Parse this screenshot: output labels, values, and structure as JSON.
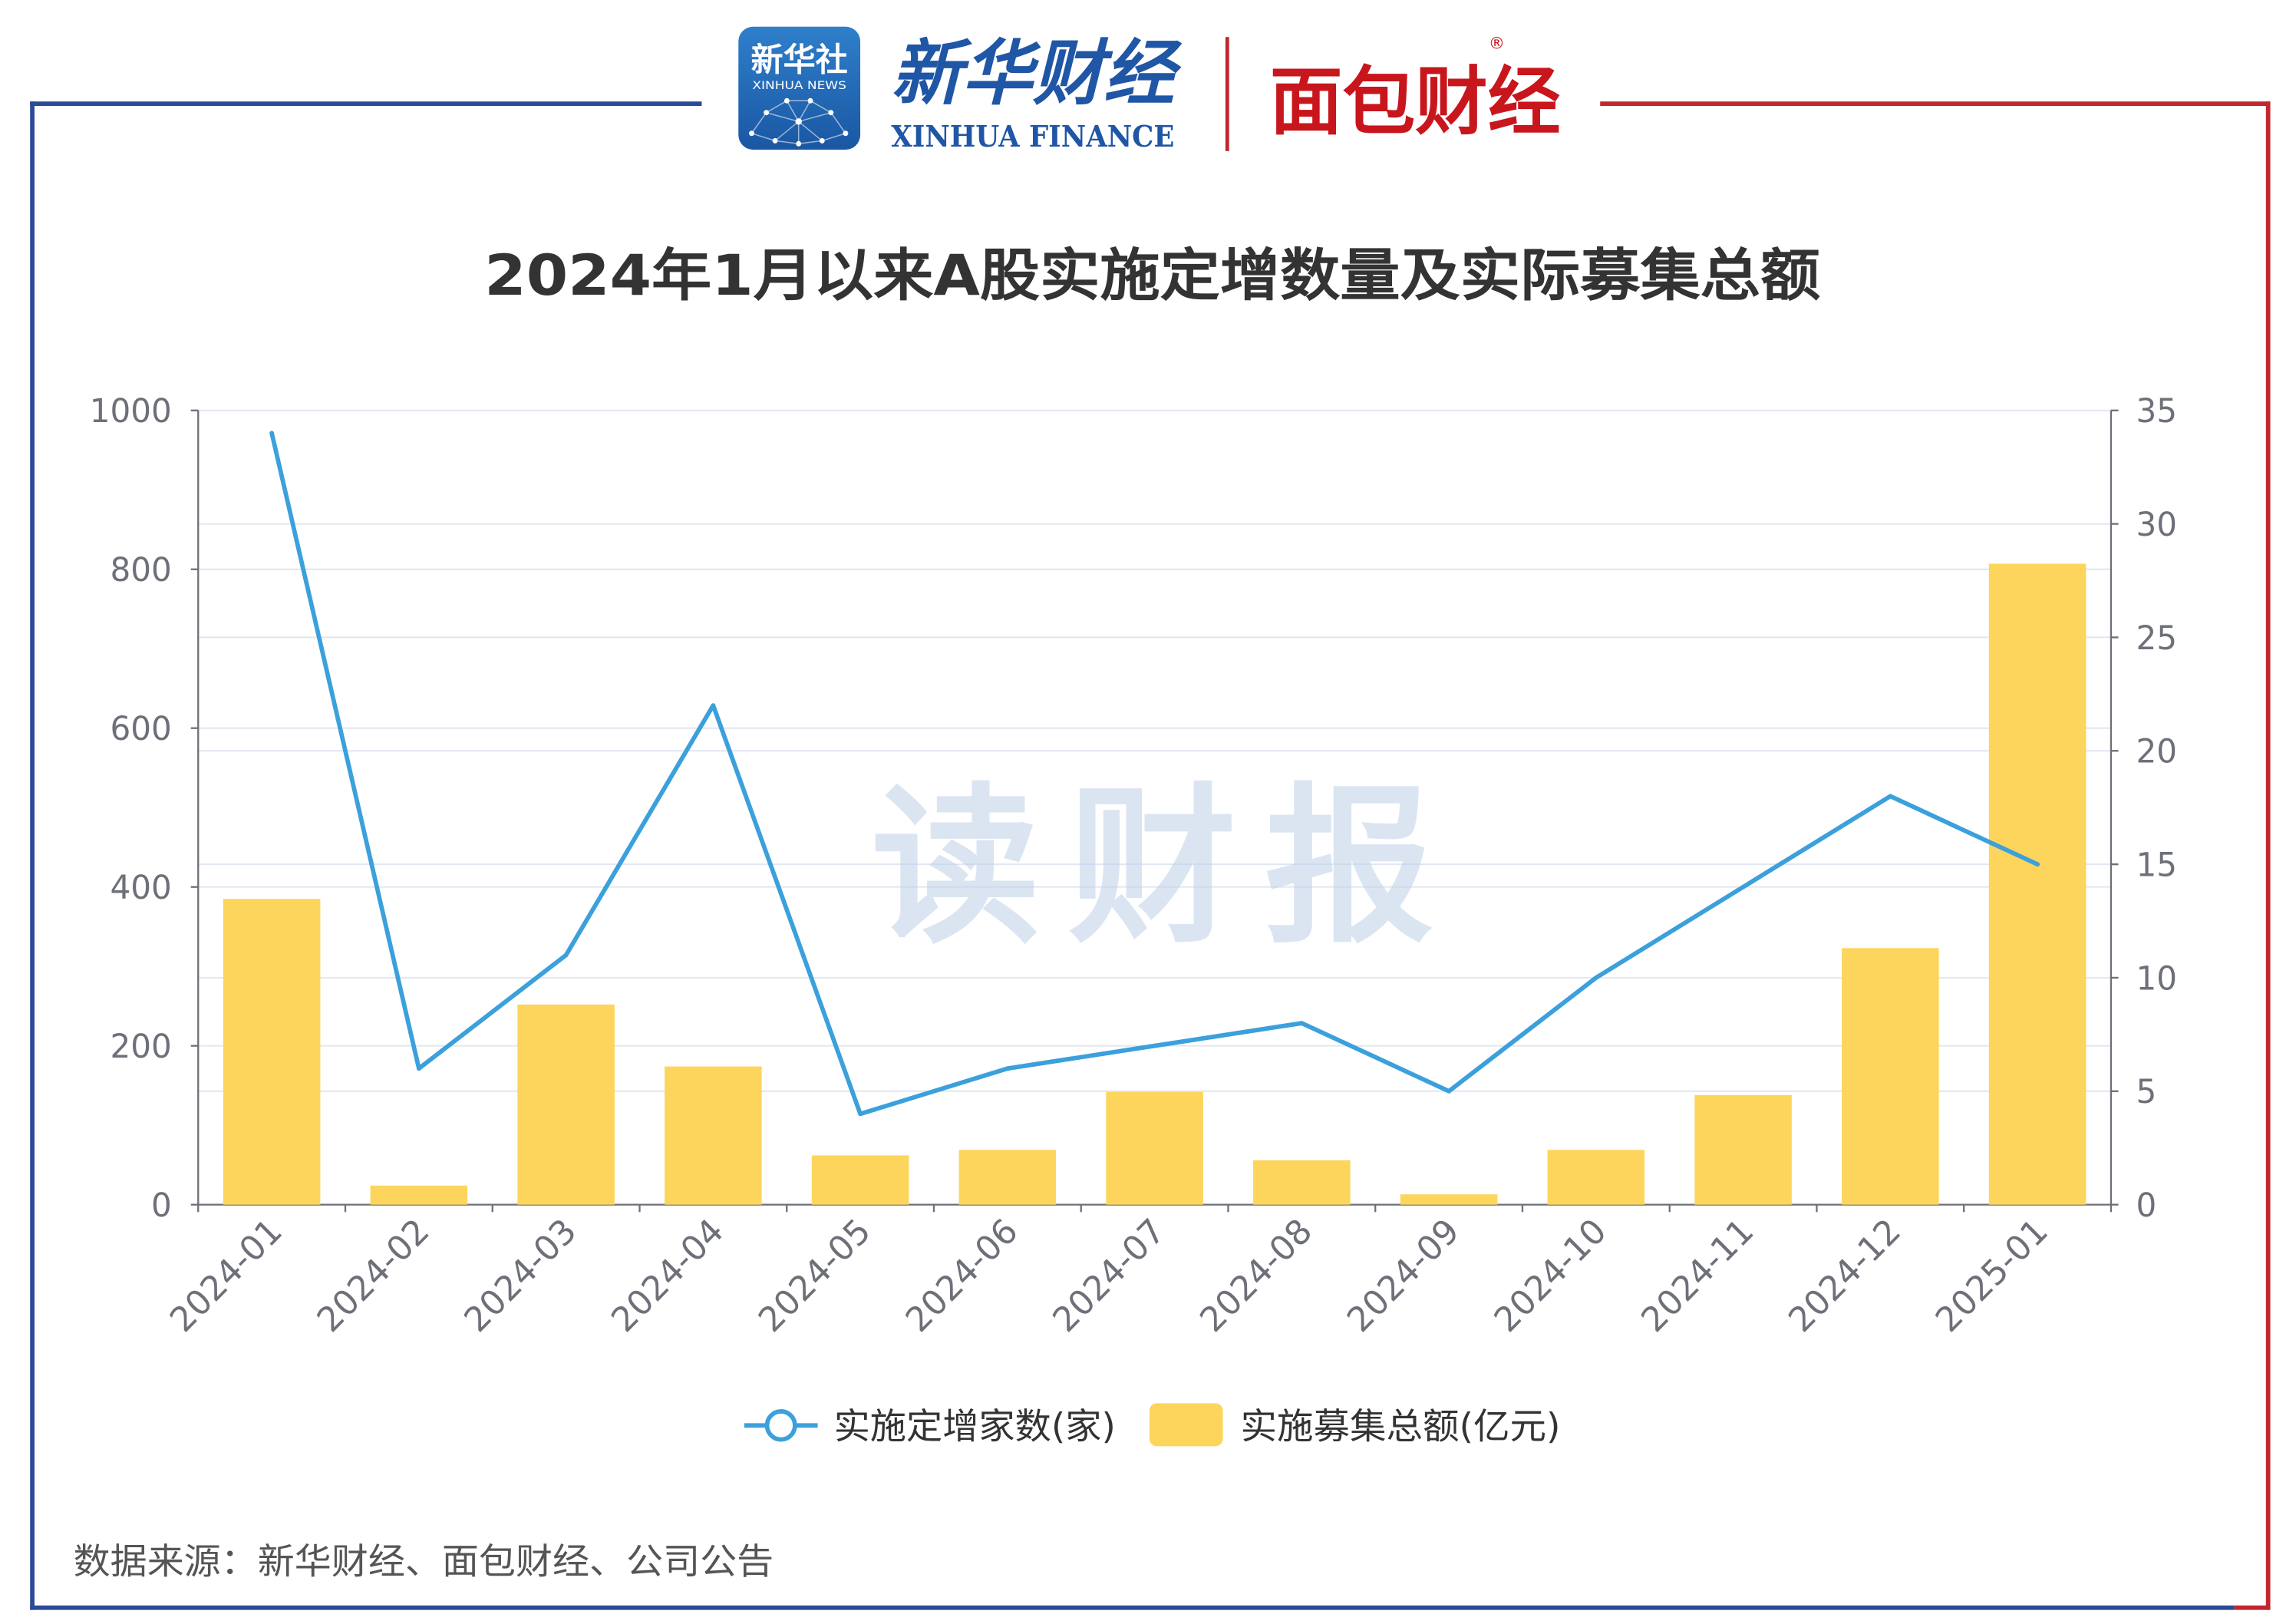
{
  "header": {
    "xinhua_news": {
      "cn": "新华社",
      "en": "XINHUA NEWS"
    },
    "xinhua_finance": {
      "cn": "新华财经",
      "en": "XINHUA FINANCE"
    },
    "mianbao_finance": {
      "cn": "面包财经",
      "mark": "®"
    }
  },
  "watermark": "读财报",
  "footer": {
    "source": "数据来源：新华财经、面包财经、公司公告"
  },
  "colors": {
    "frame_blue": "#2B4A97",
    "frame_red": "#C1272D",
    "xinhua_blue": "#1F56A5",
    "mianbao_red": "#C8161D",
    "watermark": "#BFD0E9",
    "grid": "#E0E6F1",
    "axis": "#6E7079"
  },
  "chart_data": {
    "type": "bar",
    "title": "2024年1月以来A股实施定增数量及实际募集总额",
    "categories": [
      "2024-01",
      "2024-02",
      "2024-03",
      "2024-04",
      "2024-05",
      "2024-06",
      "2024-07",
      "2024-08",
      "2024-09",
      "2024-10",
      "2024-11",
      "2024-12",
      "2025-01"
    ],
    "series": [
      {
        "name": "实施定增家数(家)",
        "type": "line",
        "y_axis": "right",
        "color": "#3BA0DB",
        "values": [
          34,
          6,
          11,
          22,
          4,
          6,
          7,
          8,
          5,
          10,
          14,
          18,
          15
        ]
      },
      {
        "name": "实施募集总额(亿元)",
        "type": "bar",
        "y_axis": "left",
        "color": "#FDD55C",
        "values": [
          385,
          24,
          252,
          174,
          62,
          69,
          142,
          56,
          13,
          69,
          138,
          323,
          807
        ]
      }
    ],
    "y_left": {
      "min": 0,
      "max": 1000,
      "ticks": [
        0,
        200,
        400,
        600,
        800,
        1000
      ]
    },
    "y_right": {
      "min": 0,
      "max": 35,
      "ticks": [
        0,
        5,
        10,
        15,
        20,
        25,
        30,
        35
      ]
    },
    "grid": true,
    "legend_position": "bottom-center"
  }
}
